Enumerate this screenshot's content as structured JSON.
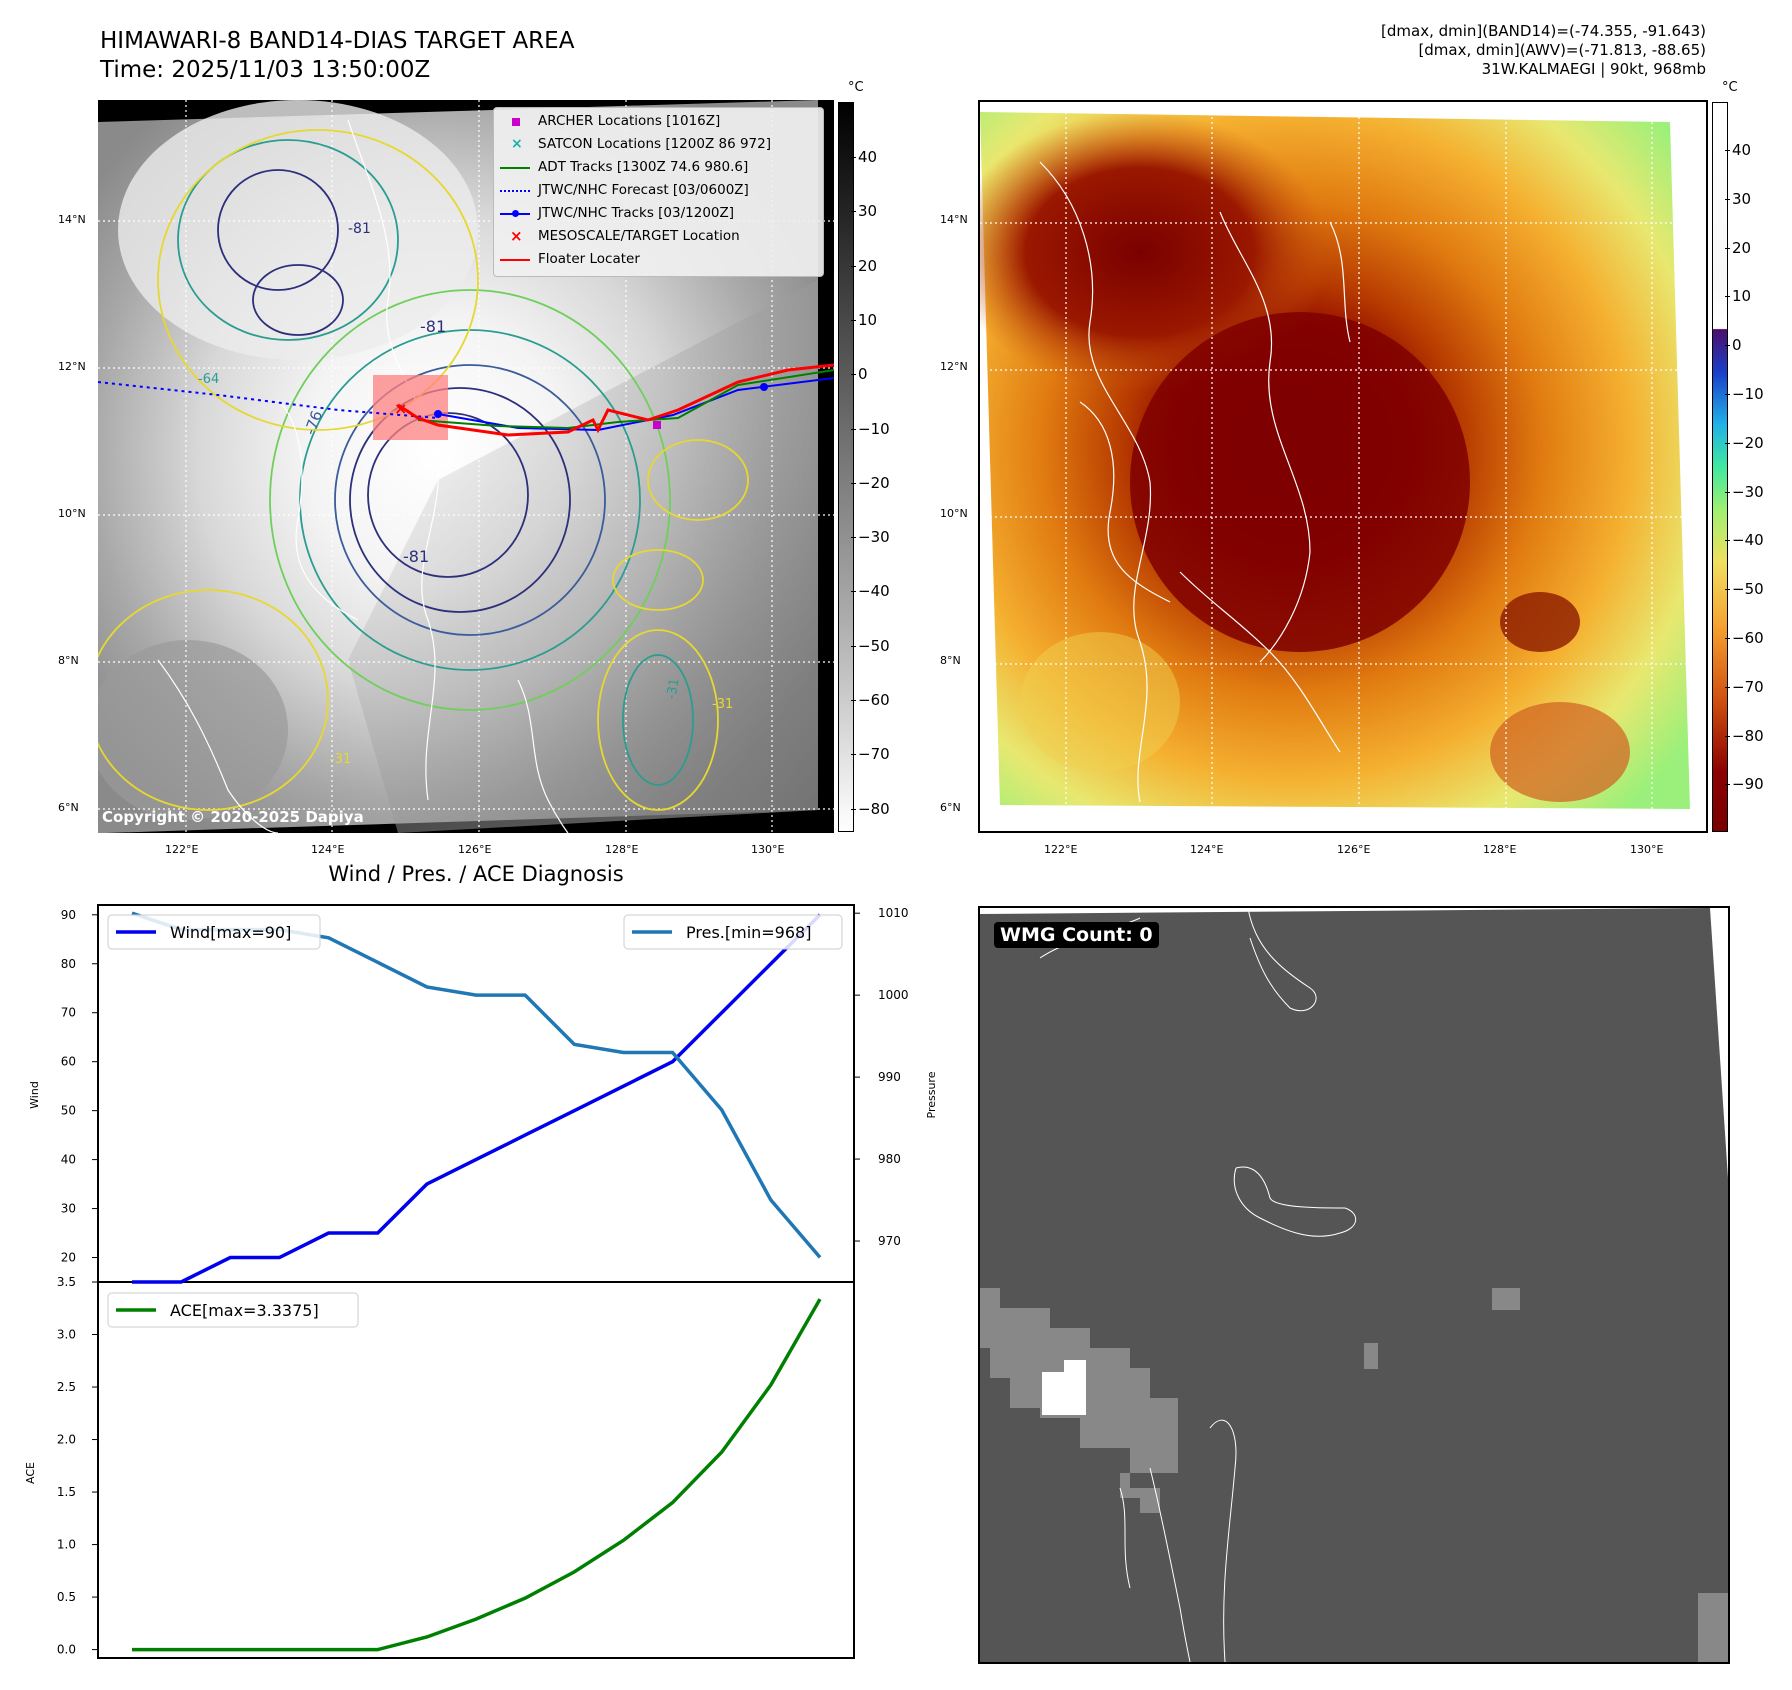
{
  "header": {
    "title_line1": "HIMAWARI-8 BAND14-DIAS TARGET AREA",
    "title_line2": "Time: 2025/11/03 13:50:00Z",
    "info_line1": "[dmax, dmin](BAND14)=(-74.355, -91.643)",
    "info_line2": "[dmax, dmin](AWV)=(-71.813, -88.65)",
    "info_line3": "31W.KALMAEGI | 90kt, 968mb"
  },
  "map_axes": {
    "lat_labels": [
      "14°N",
      "12°N",
      "10°N",
      "8°N",
      "6°N"
    ],
    "lon_labels": [
      "122°E",
      "124°E",
      "126°E",
      "128°E",
      "130°E"
    ],
    "copyright": "Copyright © 2020-2025 Dapiya",
    "contour_labels": [
      "-81",
      "-81",
      "-76",
      "-64",
      "-81",
      "-31",
      "-31",
      "-31"
    ]
  },
  "colorbar_gray": {
    "unit": "°C",
    "ticks": [
      "40",
      "30",
      "20",
      "10",
      "0",
      "−10",
      "−20",
      "−30",
      "−40",
      "−50",
      "−60",
      "−70",
      "−80"
    ]
  },
  "colorbar_color": {
    "unit": "°C",
    "ticks": [
      "40",
      "30",
      "20",
      "10",
      "0",
      "−10",
      "−20",
      "−30",
      "−40",
      "−50",
      "−60",
      "−70",
      "−80",
      "−90"
    ]
  },
  "legend": {
    "archer": "ARCHER Locations [1016Z]",
    "satcon": "SATCON Locations [1200Z 86 972]",
    "adt": "ADT Tracks [1300Z 74.6 980.6]",
    "forecast": "JTWC/NHC Forecast [03/0600Z]",
    "tracks": "JTWC/NHC Tracks [03/1200Z]",
    "target": "MESOSCALE/TARGET Location",
    "floater": "Floater Locater"
  },
  "colors": {
    "wind": "#0000ee",
    "pressure": "#1f77b4",
    "ace": "#008000",
    "archer": "#cc00cc",
    "satcon": "#17b0b0",
    "adt": "#008000",
    "jtwc": "#0000ff",
    "target": "#ff0000"
  },
  "chart_data": [
    {
      "type": "line",
      "title": "Wind / Pres. / ACE Diagnosis",
      "ylabel": "Wind",
      "y2label": "Pressure",
      "ylim": [
        15,
        92
      ],
      "y2lim": [
        965,
        1011
      ],
      "yticks": [
        20,
        30,
        40,
        50,
        60,
        70,
        80,
        90
      ],
      "y2ticks": [
        970,
        980,
        990,
        1000,
        1010
      ],
      "series": [
        {
          "name": "Wind[max=90]",
          "axis": "left",
          "values": [
            15,
            15,
            20,
            20,
            25,
            25,
            35,
            40,
            45,
            50,
            55,
            60,
            70,
            80,
            90
          ]
        },
        {
          "name": "Pres.[min=968]",
          "axis": "right",
          "values": [
            1010,
            1008,
            1008,
            1008,
            1007,
            1004,
            1001,
            1000,
            1000,
            994,
            993,
            993,
            986,
            975,
            968
          ]
        }
      ]
    },
    {
      "type": "line",
      "ylabel": "ACE",
      "ylim": [
        -0.08,
        3.5
      ],
      "yticks": [
        0.0,
        0.5,
        1.0,
        1.5,
        2.0,
        2.5,
        3.0,
        3.5
      ],
      "ytick_labels": [
        "0.0",
        "0.5",
        "1.0",
        "1.5",
        "2.0",
        "2.5",
        "3.0",
        "3.5"
      ],
      "series": [
        {
          "name": "ACE[max=3.3375]",
          "values": [
            0,
            0,
            0,
            0,
            0,
            0,
            0.12,
            0.29,
            0.49,
            0.74,
            1.04,
            1.4,
            1.88,
            2.52,
            3.3375
          ]
        }
      ]
    }
  ],
  "wmg": {
    "label": "WMG Count: 0"
  }
}
